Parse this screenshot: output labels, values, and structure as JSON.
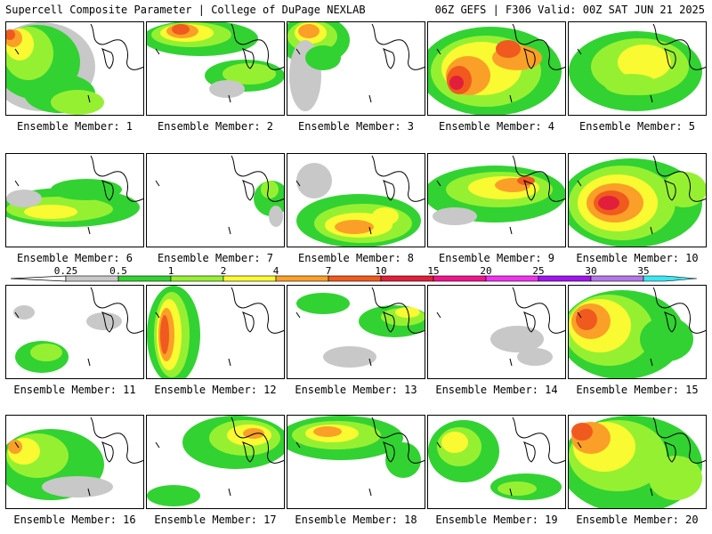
{
  "header": {
    "left": "Supercell Composite Parameter | College of DuPage NEXLAB",
    "right": "06Z GEFS | F306 Valid: 00Z SAT JUN 21 2025"
  },
  "legend": {
    "ticks": [
      "0.25",
      "0.5",
      "1",
      "2",
      "4",
      "7",
      "10",
      "15",
      "20",
      "25",
      "30",
      "35"
    ],
    "colors": [
      "#c8c8c8",
      "#32d232",
      "#96f032",
      "#fafa32",
      "#faa028",
      "#f05a1e",
      "#e11e3c",
      "#f0148c",
      "#f032f0",
      "#a014f0",
      "#b478e6",
      "#3ce6f0"
    ]
  },
  "members": [
    {
      "label": "Ensemble Member: 1"
    },
    {
      "label": "Ensemble Member: 2"
    },
    {
      "label": "Ensemble Member: 3"
    },
    {
      "label": "Ensemble Member: 4"
    },
    {
      "label": "Ensemble Member: 5"
    },
    {
      "label": "Ensemble Member: 6"
    },
    {
      "label": "Ensemble Member: 7"
    },
    {
      "label": "Ensemble Member: 8"
    },
    {
      "label": "Ensemble Member: 9"
    },
    {
      "label": "Ensemble Member: 10"
    },
    {
      "label": "Ensemble Member: 11"
    },
    {
      "label": "Ensemble Member: 12"
    },
    {
      "label": "Ensemble Member: 13"
    },
    {
      "label": "Ensemble Member: 14"
    },
    {
      "label": "Ensemble Member: 15"
    },
    {
      "label": "Ensemble Member: 16"
    },
    {
      "label": "Ensemble Member: 17"
    },
    {
      "label": "Ensemble Member: 18"
    },
    {
      "label": "Ensemble Member: 19"
    },
    {
      "label": "Ensemble Member: 20"
    }
  ]
}
